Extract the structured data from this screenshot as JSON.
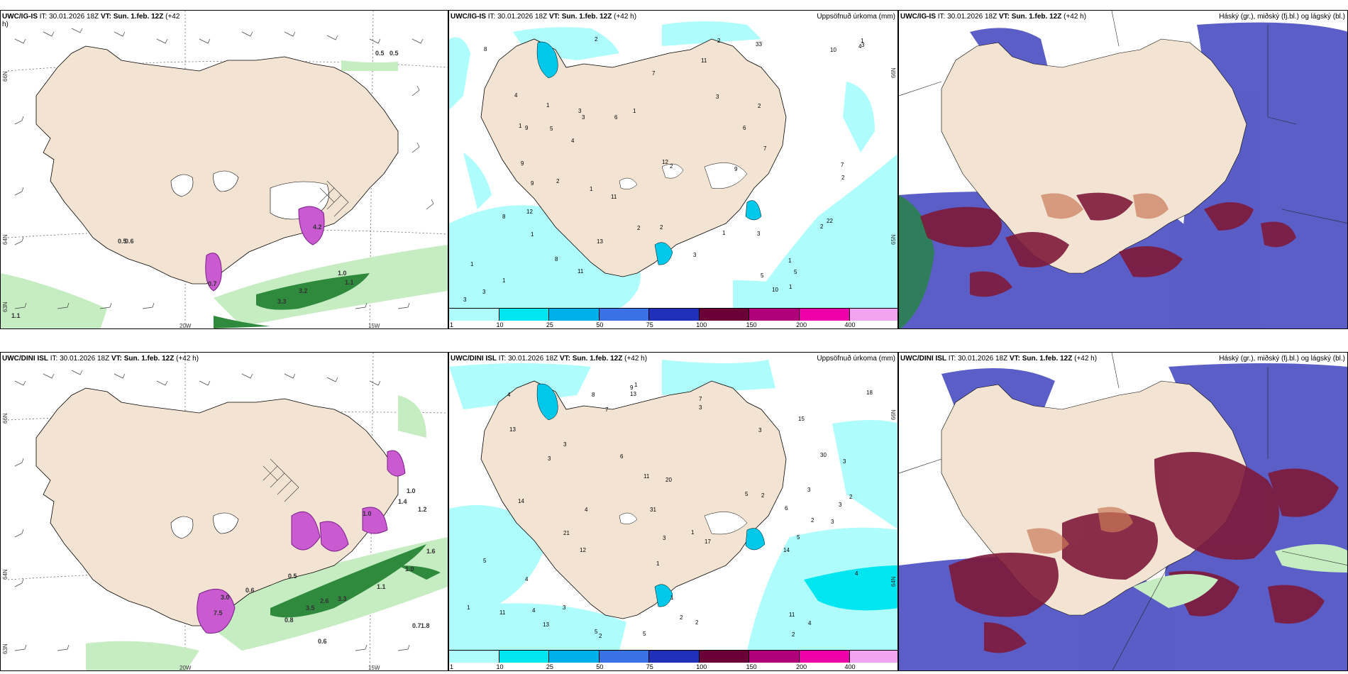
{
  "panels": {
    "top_left": {
      "title": "UWC/IG-IS",
      "title_rest": "IT: 30.01.2026 18Z",
      "vt_label": "VT: Sun. 1.feb. 12Z",
      "lead": "(+42",
      "lead_wrap": "h)",
      "lat_labels": [
        "66N",
        "64N",
        "63N"
      ],
      "lon_labels": [
        "20W",
        "15W"
      ],
      "values": [
        "0.5",
        "0.5",
        "0.5",
        "0.6",
        "1.0",
        "1.1",
        "3.2",
        "3.3",
        "0.7",
        "1.1",
        "4.2"
      ]
    },
    "top_mid": {
      "title": "UWC/IG-IS",
      "title_rest": "IT: 30.01.2026 18Z",
      "vt_label": "VT: Sun. 1.feb. 12Z",
      "lead": "(+42 h)",
      "right_label": "Uppsöfnuð úrkoma (mm)",
      "lat_labels": [
        "65N",
        "66N"
      ],
      "colorbar_labels": [
        "1",
        "10",
        "25",
        "50",
        "75",
        "100",
        "150",
        "200",
        "400"
      ],
      "colorbar_colors": [
        "#aefcfc",
        "#00e6f0",
        "#00b0e8",
        "#3a72e6",
        "#2030b8",
        "#6a0036",
        "#b0007a",
        "#ee00a8",
        "#f2a4f0"
      ],
      "numbers": [
        "3",
        "3",
        "2",
        "3",
        "6",
        "7",
        "4",
        "5",
        "2",
        "11",
        "13",
        "33",
        "22",
        "3",
        "12",
        "2",
        "1",
        "1",
        "1",
        "2",
        "3",
        "8",
        "4",
        "2",
        "9",
        "1",
        "5",
        "7",
        "1",
        "8",
        "9",
        "10",
        "11",
        "7",
        "2",
        "5",
        "4",
        "6",
        "11",
        "9",
        "3",
        "3",
        "2",
        "1",
        "1",
        "2",
        "3",
        "1",
        "8",
        "9",
        "10",
        "2",
        "1",
        "1",
        "1",
        "12"
      ]
    },
    "top_right": {
      "title": "UWC/IG-IS",
      "title_rest": "IT: 30.01.2026 18Z",
      "vt_label": "VT: Sun. 1.feb. 12Z",
      "lead": "(+42 h)",
      "right_label": "Háský (gr.), miðský (fj.bl.) og lágský (bl.)"
    },
    "bottom_left": {
      "title": "UWC/DINI ISL",
      "title_rest": "IT: 30.01.2026 18Z",
      "vt_label": "VT: Sun. 1.feb. 12Z",
      "lead": "(+42 h)",
      "lat_labels": [
        "66N",
        "64N",
        "63N"
      ],
      "lon_labels": [
        "20W",
        "15W"
      ],
      "values": [
        "1.0",
        "1.4",
        "1.2",
        "1.6",
        "1.0",
        "1.1",
        "2.6",
        "3.3",
        "0.8",
        "0.6",
        "0.7",
        "1.8",
        "3.0",
        "7.5",
        "0.6",
        "1.0",
        "0.5",
        "3.5"
      ]
    },
    "bottom_mid": {
      "title": "UWC/DINI ISL",
      "title_rest": "IT: 30.01.2026 18Z",
      "vt_label": "VT: Sun. 1.feb. 12Z",
      "lead": "(+42 h)",
      "right_label": "Uppsöfnuð úrkoma (mm)",
      "lat_labels": [
        "66N",
        "64N"
      ],
      "colorbar_labels": [
        "1",
        "10",
        "25",
        "50",
        "75",
        "100",
        "150",
        "200",
        "400"
      ],
      "colorbar_colors": [
        "#aefcfc",
        "#00e6f0",
        "#00b0e8",
        "#3a72e6",
        "#2030b8",
        "#6a0036",
        "#b0007a",
        "#ee00a8",
        "#f2a4f0"
      ],
      "numbers": [
        "3",
        "3",
        "5",
        "3",
        "4",
        "12",
        "21",
        "31",
        "5",
        "3",
        "2",
        "1",
        "3",
        "14",
        "3",
        "1",
        "1",
        "1",
        "2",
        "3",
        "4",
        "4",
        "7",
        "5",
        "6",
        "4",
        "3",
        "2",
        "1",
        "2",
        "5",
        "2",
        "8",
        "3",
        "11",
        "6",
        "4",
        "13",
        "2",
        "9",
        "3",
        "20",
        "18",
        "15",
        "13",
        "30",
        "14",
        "11",
        "13",
        "7",
        "17",
        "4",
        "11",
        "2",
        "5"
      ]
    },
    "bottom_right": {
      "title": "UWC/DINI ISL",
      "title_rest": "IT: 30.01.2026 18Z",
      "vt_label": "VT: Sun. 1.feb. 12Z",
      "lead": "(+42 h)",
      "right_label": "Háský (gr.), miðský (fj.bl.) og lágský (bl.)"
    }
  },
  "colors": {
    "land": "#f3e3d3",
    "precip_light": "#aefcfc",
    "snow_green_light": "#c6ecc2",
    "snow_green_dark": "#2f8a3e",
    "magenta": "#c95ad0",
    "cloud_high_red": "#7e1a3a",
    "cloud_mid_blue": "#5255c4",
    "cloud_low_blue": "#3a5fd8"
  }
}
